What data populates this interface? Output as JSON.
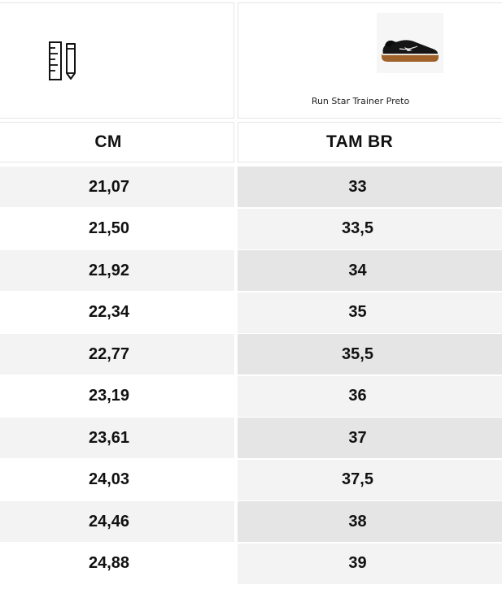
{
  "table": {
    "product_name": "Run Star Trainer Preto",
    "columns": {
      "cm_header": "CM",
      "br_header": "TAM BR"
    },
    "rows": [
      {
        "cm": "21,07",
        "br": "33"
      },
      {
        "cm": "21,50",
        "br": "33,5"
      },
      {
        "cm": "21,92",
        "br": "34"
      },
      {
        "cm": "22,34",
        "br": "35"
      },
      {
        "cm": "22,77",
        "br": "35,5"
      },
      {
        "cm": "23,19",
        "br": "36"
      },
      {
        "cm": "23,61",
        "br": "37"
      },
      {
        "cm": "24,03",
        "br": "37,5"
      },
      {
        "cm": "24,46",
        "br": "38"
      },
      {
        "cm": "24,88",
        "br": "39"
      }
    ]
  },
  "icons": {
    "measure": "ruler-pencil-icon",
    "product": "sneaker-image"
  },
  "colors": {
    "row_light": "#f3f3f3",
    "row_dark": "#e5e5e5",
    "border": "#e6e6e6",
    "text": "#111111"
  }
}
